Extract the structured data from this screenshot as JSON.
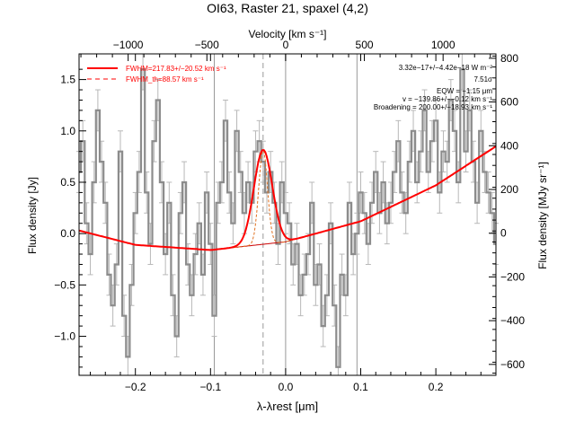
{
  "chart_data": {
    "type": "line",
    "title": "OI63, Raster 21, spaxel (4,2)",
    "xlabel": "λ-λrest [μm]",
    "x2label": "Velocity [km s⁻¹]",
    "ylabel": "Flux density [Jy]",
    "y2label": "Flux density [MJy sr⁻¹]",
    "xlim": [
      -0.275,
      0.28
    ],
    "ylim": [
      -1.38,
      1.75
    ],
    "y2lim": [
      -650,
      820
    ],
    "velocity_axis": {
      "km_per_um": 4770,
      "ticks": [
        -1000,
        -500,
        0,
        500,
        1000
      ],
      "labels": [
        "−1000",
        "−500",
        "0",
        "500",
        "1000"
      ]
    },
    "x_ticks": [
      -0.2,
      -0.1,
      0.0,
      0.1,
      0.2
    ],
    "x_tick_labels": [
      "−0.2",
      "−0.1",
      "0.0",
      "0.1",
      "0.2"
    ],
    "y_ticks": [
      -1.0,
      -0.5,
      0.0,
      0.5,
      1.0,
      1.5
    ],
    "y_tick_labels": [
      "−1.0",
      "−0.5",
      "0.0",
      "0.5",
      "1.0",
      "1.5"
    ],
    "y2_ticks": [
      -600,
      -400,
      -200,
      0,
      200,
      400,
      600,
      800
    ],
    "y2_tick_labels": [
      "−600",
      "−400",
      "−200",
      "0",
      "200",
      "400",
      "600",
      "800"
    ],
    "vlines_solid": [
      -0.095,
      0.0,
      0.095
    ],
    "vline_dashed": -0.03,
    "gray_color": "#8c8c8c",
    "errorbar_color": "#b8b8b8",
    "fit_color": "#ff0000",
    "legend": [
      {
        "label": "FWHM=217.83+/−20.52 km s⁻¹",
        "style": "solid"
      },
      {
        "label": "FWHM_th=88.57 km s⁻¹",
        "style": "dashed"
      }
    ],
    "annotations": [
      "3.32e−17+/−4.42e−18 W m⁻²",
      "7.51σ",
      "EQW = −1.15 μm",
      "v = −139.86+/−−0.12 km s⁻¹",
      "Broadening = 200.00+/−18.93 km s⁻¹"
    ],
    "continuum": {
      "x": [
        -0.275,
        -0.2,
        -0.1,
        0.0,
        0.1,
        0.2,
        0.28
      ],
      "y": [
        0.03,
        -0.11,
        -0.16,
        -0.08,
        0.12,
        0.47,
        0.85
      ]
    },
    "gaussian_fit": {
      "center": -0.03,
      "sigma": 0.0123,
      "amplitude": 0.92
    },
    "gaussian_thermal": {
      "center": -0.03,
      "sigma": 0.0058,
      "amplitude": 0.92
    },
    "spectrum": {
      "x": [
        -0.275,
        -0.27,
        -0.265,
        -0.26,
        -0.255,
        -0.25,
        -0.245,
        -0.24,
        -0.235,
        -0.23,
        -0.225,
        -0.22,
        -0.215,
        -0.21,
        -0.205,
        -0.2,
        -0.195,
        -0.19,
        -0.185,
        -0.18,
        -0.175,
        -0.17,
        -0.165,
        -0.16,
        -0.155,
        -0.15,
        -0.145,
        -0.14,
        -0.135,
        -0.13,
        -0.125,
        -0.12,
        -0.115,
        -0.11,
        -0.105,
        -0.1,
        -0.095,
        -0.09,
        -0.085,
        -0.08,
        -0.075,
        -0.07,
        -0.065,
        -0.06,
        -0.055,
        -0.05,
        -0.045,
        -0.04,
        -0.035,
        -0.03,
        -0.025,
        -0.02,
        -0.015,
        -0.01,
        -0.005,
        0.0,
        0.005,
        0.01,
        0.015,
        0.02,
        0.025,
        0.03,
        0.035,
        0.04,
        0.045,
        0.05,
        0.055,
        0.06,
        0.065,
        0.07,
        0.075,
        0.08,
        0.085,
        0.09,
        0.095,
        0.1,
        0.105,
        0.11,
        0.115,
        0.12,
        0.125,
        0.13,
        0.135,
        0.14,
        0.145,
        0.15,
        0.155,
        0.16,
        0.165,
        0.17,
        0.175,
        0.18,
        0.185,
        0.19,
        0.195,
        0.2,
        0.205,
        0.21,
        0.215,
        0.22,
        0.225,
        0.23,
        0.235,
        0.24,
        0.245,
        0.25,
        0.255,
        0.26,
        0.265,
        0.27,
        0.275,
        0.28
      ],
      "y": [
        0.6,
        0.9,
        0.1,
        -0.2,
        0.5,
        1.2,
        0.7,
        0.3,
        -0.4,
        -0.7,
        -0.3,
        0.8,
        -0.8,
        -1.2,
        -0.5,
        0.2,
        0.6,
        1.6,
        0.4,
        -0.1,
        0.9,
        1.3,
        0.5,
        -0.2,
        0.3,
        -0.6,
        -1.0,
        0.2,
        0.5,
        -0.3,
        -0.6,
        -0.2,
        0.1,
        -0.4,
        0.4,
        -0.1,
        -0.8,
        0.3,
        0.5,
        1.1,
        0.4,
        0.1,
        1.0,
        0.6,
        0.2,
        0.5,
        0.3,
        0.8,
        0.9,
        0.7,
        0.4,
        0.6,
        0.3,
        -0.1,
        0.5,
        0.2,
        0.1,
        -0.3,
        -0.1,
        -0.6,
        -0.4,
        -0.2,
        0.3,
        -0.5,
        -0.3,
        -0.9,
        -0.6,
        0.1,
        -0.7,
        -1.3,
        -0.4,
        -0.6,
        0.3,
        -0.2,
        0.0,
        0.4,
        0.2,
        -0.1,
        0.3,
        0.6,
        0.2,
        0.5,
        0.1,
        0.3,
        0.6,
        0.9,
        0.4,
        0.2,
        0.7,
        1.0,
        0.5,
        0.8,
        1.2,
        0.6,
        0.9,
        1.1,
        0.4,
        0.8,
        0.7,
        1.3,
        1.0,
        0.5,
        1.6,
        0.8,
        1.2,
        0.7,
        0.3,
        1.0,
        0.6,
        0.4,
        0.2,
        -0.1
      ],
      "err": 0.2
    }
  }
}
